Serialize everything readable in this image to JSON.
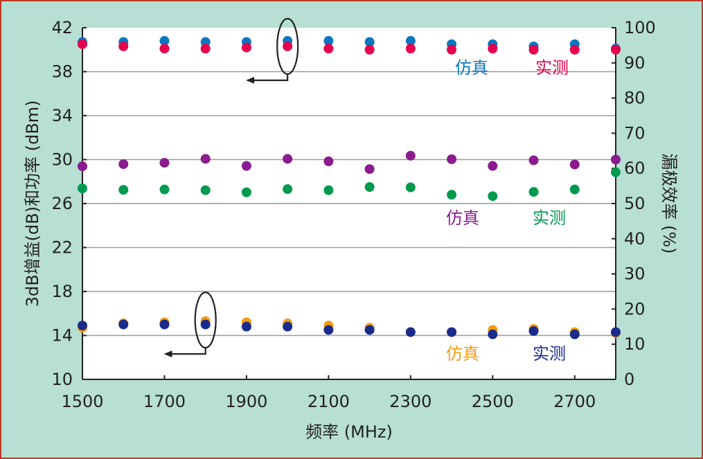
{
  "chart_data": {
    "type": "scatter",
    "xlabel": "频率 (MHz)",
    "ylabel_left": "3dB增益(dB)和功率 (dBm)",
    "ylabel_right": "漏极效率 (%)",
    "xlim": [
      1500,
      2800
    ],
    "ylim_left": [
      10,
      42
    ],
    "ylim_right": [
      0,
      100
    ],
    "x_ticks": [
      1500,
      1700,
      1900,
      2100,
      2300,
      2500,
      2700
    ],
    "y_ticks_left": [
      10,
      14,
      18,
      22,
      26,
      30,
      34,
      38,
      42
    ],
    "y_ticks_right": [
      0,
      10,
      20,
      30,
      40,
      50,
      60,
      70,
      80,
      90,
      100
    ],
    "grid": "horizontal",
    "x": [
      1500,
      1600,
      1700,
      1800,
      1900,
      2000,
      2100,
      2200,
      2300,
      2400,
      2500,
      2600,
      2700,
      2800
    ],
    "series": [
      {
        "group": "power",
        "axis": "left",
        "color": "#0b77bf",
        "values": [
          40.7,
          40.7,
          40.8,
          40.7,
          40.7,
          40.8,
          40.8,
          40.7,
          40.8,
          40.5,
          40.5,
          40.3,
          40.5,
          40.1
        ]
      },
      {
        "group": "power",
        "axis": "left",
        "color": "#e5004f",
        "values": [
          40.5,
          40.3,
          40.1,
          40.1,
          40.2,
          40.3,
          40.1,
          40.0,
          40.1,
          40.0,
          40.1,
          40.0,
          40.0,
          40.0
        ]
      },
      {
        "group": "efficiency",
        "axis": "right",
        "color": "#8b1b8e",
        "values": [
          60.6,
          61.2,
          61.6,
          62.7,
          60.7,
          62.7,
          62.0,
          59.8,
          63.6,
          62.6,
          60.7,
          62.3,
          61.1,
          62.5
        ]
      },
      {
        "group": "efficiency",
        "axis": "right",
        "color": "#009a4e",
        "values": [
          54.3,
          53.9,
          54.0,
          53.8,
          53.2,
          54.1,
          53.8,
          54.7,
          54.6,
          52.5,
          52.1,
          53.3,
          54.0,
          58.9
        ]
      },
      {
        "group": "gain",
        "axis": "left",
        "color": "#f39c12",
        "values": [
          14.7,
          15.1,
          15.2,
          15.3,
          15.2,
          15.1,
          14.9,
          14.7,
          14.3,
          14.3,
          14.5,
          14.6,
          14.3,
          14.2
        ]
      },
      {
        "group": "gain",
        "axis": "left",
        "color": "#1a2b8c",
        "values": [
          14.9,
          15.0,
          15.0,
          15.0,
          14.8,
          14.8,
          14.5,
          14.5,
          14.3,
          14.3,
          14.1,
          14.4,
          14.1,
          14.3
        ]
      }
    ],
    "annotations": [
      {
        "text": "仿真",
        "color": "#0b77bf",
        "group": "power"
      },
      {
        "text": "实测",
        "color": "#e5004f",
        "group": "power"
      },
      {
        "text": "仿真",
        "color": "#8b1b8e",
        "group": "efficiency"
      },
      {
        "text": "实测",
        "color": "#009a4e",
        "group": "efficiency"
      },
      {
        "text": "仿真",
        "color": "#f39c12",
        "group": "gain"
      },
      {
        "text": "实测",
        "color": "#1a2b8c",
        "group": "gain"
      }
    ]
  },
  "colors": {
    "background": "#b7dfd3",
    "border": "#c0392b",
    "plot_bg": "#ffffff",
    "grid": "#9a9a9a",
    "axis": "#231f20"
  }
}
